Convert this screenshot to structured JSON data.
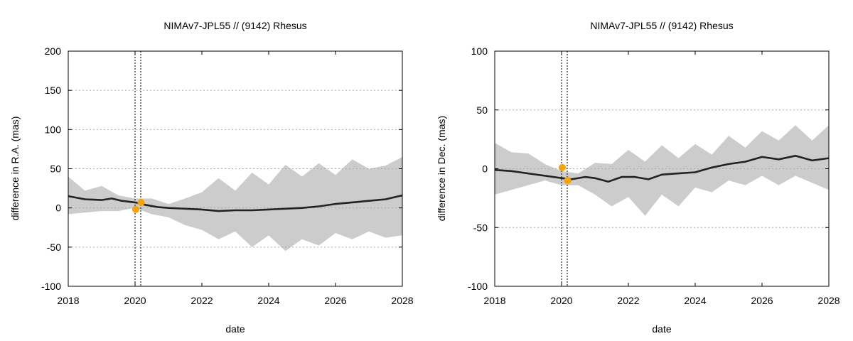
{
  "chart_data": [
    {
      "type": "line",
      "title": "NIMAv7-JPL55 // (9142) Rhesus",
      "xlabel": "date",
      "ylabel": "difference in R.A. (mas)",
      "xlim": [
        2018,
        2028
      ],
      "ylim": [
        -100,
        200
      ],
      "xticks": [
        2018,
        2020,
        2022,
        2024,
        2026,
        2028
      ],
      "yticks": [
        -100,
        -50,
        0,
        50,
        100,
        150,
        200
      ],
      "grid": true,
      "vlines": [
        2020.0,
        2020.17
      ],
      "series": [
        {
          "name": "difference",
          "x": [
            2018.0,
            2018.5,
            2019.0,
            2019.3,
            2019.6,
            2020.0,
            2020.3,
            2020.7,
            2021.0,
            2021.5,
            2022.0,
            2022.5,
            2023.0,
            2023.5,
            2024.0,
            2024.5,
            2025.0,
            2025.5,
            2026.0,
            2026.5,
            2027.0,
            2027.5,
            2028.0
          ],
          "y": [
            15,
            11,
            10,
            12,
            9,
            7,
            4,
            1,
            0,
            -1,
            -2,
            -4,
            -3,
            -3,
            -2,
            -1,
            0,
            2,
            5,
            7,
            9,
            11,
            16
          ]
        }
      ],
      "band": {
        "x": [
          2018.0,
          2018.5,
          2019.0,
          2019.5,
          2020.0,
          2020.5,
          2021.0,
          2021.5,
          2022.0,
          2022.5,
          2023.0,
          2023.5,
          2024.0,
          2024.5,
          2025.0,
          2025.5,
          2026.0,
          2026.5,
          2027.0,
          2027.5,
          2028.0
        ],
        "upper": [
          40,
          22,
          28,
          16,
          12,
          12,
          5,
          12,
          20,
          38,
          22,
          45,
          30,
          55,
          40,
          57,
          42,
          62,
          50,
          54,
          65
        ],
        "lower": [
          -8,
          -6,
          -4,
          -4,
          0,
          -8,
          -12,
          -22,
          -28,
          -40,
          -30,
          -50,
          -35,
          -55,
          -40,
          -48,
          -32,
          -40,
          -30,
          -38,
          -35
        ]
      },
      "markers": {
        "x": [
          2020.02,
          2020.18
        ],
        "y": [
          -2,
          7
        ],
        "color": "#f2a30f"
      }
    },
    {
      "type": "line",
      "title": "NIMAv7-JPL55 // (9142) Rhesus",
      "xlabel": "date",
      "ylabel": "difference in Dec. (mas)",
      "xlim": [
        2018,
        2028
      ],
      "ylim": [
        -100,
        100
      ],
      "xticks": [
        2018,
        2020,
        2022,
        2024,
        2026,
        2028
      ],
      "yticks": [
        -100,
        -50,
        0,
        50,
        100
      ],
      "grid": true,
      "vlines": [
        2020.0,
        2020.17
      ],
      "series": [
        {
          "name": "difference",
          "x": [
            2018.0,
            2018.5,
            2019.0,
            2019.5,
            2020.0,
            2020.3,
            2020.7,
            2021.0,
            2021.4,
            2021.8,
            2022.2,
            2022.6,
            2023.0,
            2023.5,
            2024.0,
            2024.5,
            2025.0,
            2025.5,
            2026.0,
            2026.5,
            2027.0,
            2027.5,
            2028.0
          ],
          "y": [
            -1,
            -2,
            -4,
            -6,
            -8,
            -9,
            -7,
            -8,
            -11,
            -7,
            -7,
            -9,
            -5,
            -4,
            -3,
            1,
            4,
            6,
            10,
            8,
            11,
            7,
            9
          ]
        }
      ],
      "band": {
        "x": [
          2018.0,
          2018.5,
          2019.0,
          2019.5,
          2020.0,
          2020.5,
          2021.0,
          2021.5,
          2022.0,
          2022.5,
          2023.0,
          2023.5,
          2024.0,
          2024.5,
          2025.0,
          2025.5,
          2026.0,
          2026.5,
          2027.0,
          2027.5,
          2028.0
        ],
        "upper": [
          22,
          14,
          13,
          4,
          -2,
          -4,
          5,
          4,
          16,
          6,
          20,
          9,
          21,
          12,
          28,
          18,
          32,
          24,
          37,
          24,
          37
        ],
        "lower": [
          -22,
          -18,
          -14,
          -10,
          -14,
          -14,
          -22,
          -32,
          -24,
          -40,
          -22,
          -32,
          -16,
          -20,
          -10,
          -14,
          -6,
          -14,
          -6,
          -12,
          -18
        ]
      },
      "markers": {
        "x": [
          2020.02,
          2020.18
        ],
        "y": [
          1,
          -10
        ],
        "color": "#f2a30f"
      }
    }
  ]
}
